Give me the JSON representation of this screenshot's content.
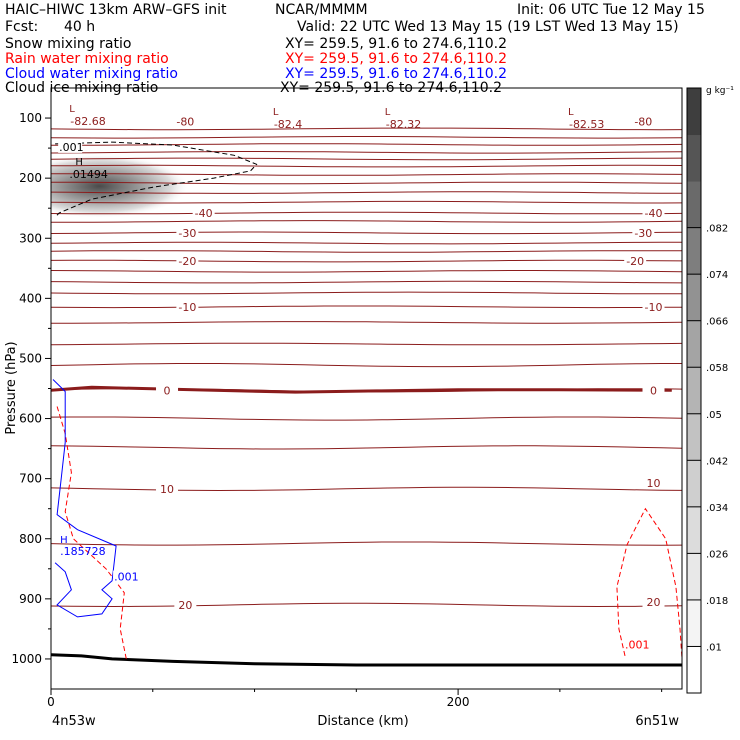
{
  "header": {
    "model": "HAIC–HIWC 13km ARW–GFS init",
    "org": "NCAR/MMMM",
    "init": "Init: 06 UTC Tue 12 May 15",
    "fcst_label": "Fcst:",
    "fcst_value": "40 h",
    "valid": "Valid: 22 UTC Wed 13 May 15 (19 LST Wed 13 May 15)",
    "fields": [
      {
        "name": "Snow mixing ratio",
        "xsec": "XY= 259.5, 91.6 to 274.6,110.2",
        "color": "#000000"
      },
      {
        "name": "Rain water mixing ratio",
        "xsec": "XY= 259.5, 91.6 to 274.6,110.2",
        "color": "#ff0000"
      },
      {
        "name": "Cloud water mixing ratio",
        "xsec": "XY= 259.5, 91.6 to 274.6,110.2",
        "color": "#0000ff"
      },
      {
        "name": "Cloud ice mixing ratio",
        "xsec": "XY= 259.5, 91.6 to 274.6,110.2",
        "color": "#000000"
      }
    ]
  },
  "chart_data": {
    "type": "heatmap",
    "xlabel": "Distance (km)",
    "ylabel": "Pressure (hPa)",
    "xlim": [
      0,
      310
    ],
    "ylim": [
      1050,
      50
    ],
    "x_ticks": [
      0,
      200
    ],
    "y_ticks": [
      100,
      200,
      300,
      400,
      500,
      600,
      700,
      800,
      900,
      1000
    ],
    "x_endpoint_labels": {
      "left": "4n53w",
      "right": "6n51w"
    },
    "colorbar": {
      "unit": "g kg⁻¹",
      "ticks": [
        ".01",
        ".018",
        ".026",
        ".034",
        ".042",
        ".05",
        ".058",
        ".066",
        ".074",
        ".082"
      ],
      "colors": [
        "#ffffff",
        "#f4f4f4",
        "#e8e8e8",
        "#dcdcdc",
        "#cfcfcf",
        "#c2c2c2",
        "#b4b4b4",
        "#a4a4a4",
        "#929292",
        "#7e7e7e",
        "#6a6a6a",
        "#555555",
        "#3e3e3e"
      ]
    },
    "snow_max": {
      "label": "H",
      "value": ".01494",
      "x": 10,
      "p": 205
    },
    "cloud_water_max": {
      "label": "H",
      "value": ".185728",
      "x": 5,
      "p": 820
    },
    "temperature_minima": [
      {
        "label": "L",
        "value": "-82.68",
        "x": 8,
        "p": 93
      },
      {
        "label": "L",
        "value": "-82.4",
        "x": 108,
        "p": 98
      },
      {
        "label": "L",
        "value": "-82.32",
        "x": 163,
        "p": 98
      },
      {
        "label": "L",
        "value": "-82.53",
        "x": 253,
        "p": 98
      }
    ],
    "isotherm_labels": [
      {
        "value": "-80",
        "x": 66,
        "p": 106
      },
      {
        "value": "-80",
        "x": 291,
        "p": 106
      },
      {
        "value": "-40",
        "x": 75,
        "p": 258
      },
      {
        "value": "-40",
        "x": 296,
        "p": 258
      },
      {
        "value": "-30",
        "x": 67,
        "p": 291
      },
      {
        "value": "-30",
        "x": 291,
        "p": 291
      },
      {
        "value": "-20",
        "x": 67,
        "p": 338
      },
      {
        "value": "-20",
        "x": 287,
        "p": 338
      },
      {
        "value": "-10",
        "x": 67,
        "p": 414
      },
      {
        "value": "-10",
        "x": 296,
        "p": 414
      },
      {
        "value": "0",
        "x": 57,
        "p": 553
      },
      {
        "value": "0",
        "x": 296,
        "p": 553
      },
      {
        "value": "10",
        "x": 57,
        "p": 717
      },
      {
        "value": "10",
        "x": 296,
        "p": 707
      },
      {
        "value": "20",
        "x": 66,
        "p": 910
      },
      {
        "value": "20",
        "x": 296,
        "p": 905
      }
    ],
    "field_labels": [
      {
        "value": ".001",
        "x": 4,
        "p": 153,
        "field": "snow"
      },
      {
        "value": ".001",
        "x": 31,
        "p": 868,
        "field": "cloud_water"
      },
      {
        "value": ".001",
        "x": 282,
        "p": 981,
        "field": "rain"
      }
    ],
    "series": [
      {
        "name": "Temperature",
        "color": "#8b1c1c"
      },
      {
        "name": "Snow mixing ratio",
        "color": "#000000"
      },
      {
        "name": "Rain water mixing ratio",
        "color": "#ff0000"
      },
      {
        "name": "Cloud water mixing ratio",
        "color": "#0000ff"
      }
    ],
    "temperature_isolines_p": [
      118,
      132,
      144,
      157,
      168,
      180,
      194,
      208,
      224,
      240,
      258,
      272,
      291,
      308,
      322,
      338,
      355,
      373,
      391,
      414,
      440,
      476,
      511,
      553,
      600,
      648,
      717,
      808,
      910
    ],
    "snow_contour": [
      [
        2,
        143
      ],
      [
        30,
        140
      ],
      [
        60,
        145
      ],
      [
        90,
        162
      ],
      [
        101,
        177
      ],
      [
        98,
        188
      ],
      [
        80,
        200
      ],
      [
        50,
        215
      ],
      [
        20,
        235
      ],
      [
        4,
        258
      ],
      [
        2,
        265
      ]
    ],
    "rain_contours": [
      [
        [
          3,
          580
        ],
        [
          7,
          625
        ],
        [
          10,
          690
        ],
        [
          7,
          755
        ],
        [
          11,
          800
        ],
        [
          27,
          850
        ],
        [
          36,
          890
        ],
        [
          34,
          950
        ],
        [
          37,
          1000
        ]
      ],
      [
        [
          282,
          995
        ],
        [
          279,
          950
        ],
        [
          278,
          880
        ],
        [
          283,
          810
        ],
        [
          292,
          750
        ],
        [
          302,
          800
        ],
        [
          307,
          880
        ],
        [
          309,
          950
        ],
        [
          310,
          1000
        ]
      ]
    ],
    "cloud_water_contour": [
      [
        1,
        535
      ],
      [
        7,
        555
      ],
      [
        7,
        640
      ],
      [
        5,
        700
      ],
      [
        3,
        760
      ],
      [
        13,
        785
      ],
      [
        32,
        812
      ],
      [
        30,
        870
      ],
      [
        25,
        885
      ],
      [
        30,
        900
      ],
      [
        25,
        925
      ],
      [
        13,
        930
      ],
      [
        3,
        910
      ],
      [
        10,
        885
      ],
      [
        7,
        855
      ],
      [
        2,
        840
      ]
    ],
    "freezing_line": [
      [
        0,
        553
      ],
      [
        20,
        548
      ],
      [
        80,
        553
      ],
      [
        120,
        556
      ],
      [
        160,
        554
      ],
      [
        200,
        552
      ],
      [
        250,
        552
      ],
      [
        305,
        553
      ]
    ],
    "terrain": [
      [
        0,
        993
      ],
      [
        15,
        995
      ],
      [
        30,
        1000
      ],
      [
        60,
        1004
      ],
      [
        100,
        1008
      ],
      [
        150,
        1010
      ],
      [
        200,
        1010
      ],
      [
        310,
        1010
      ]
    ]
  }
}
